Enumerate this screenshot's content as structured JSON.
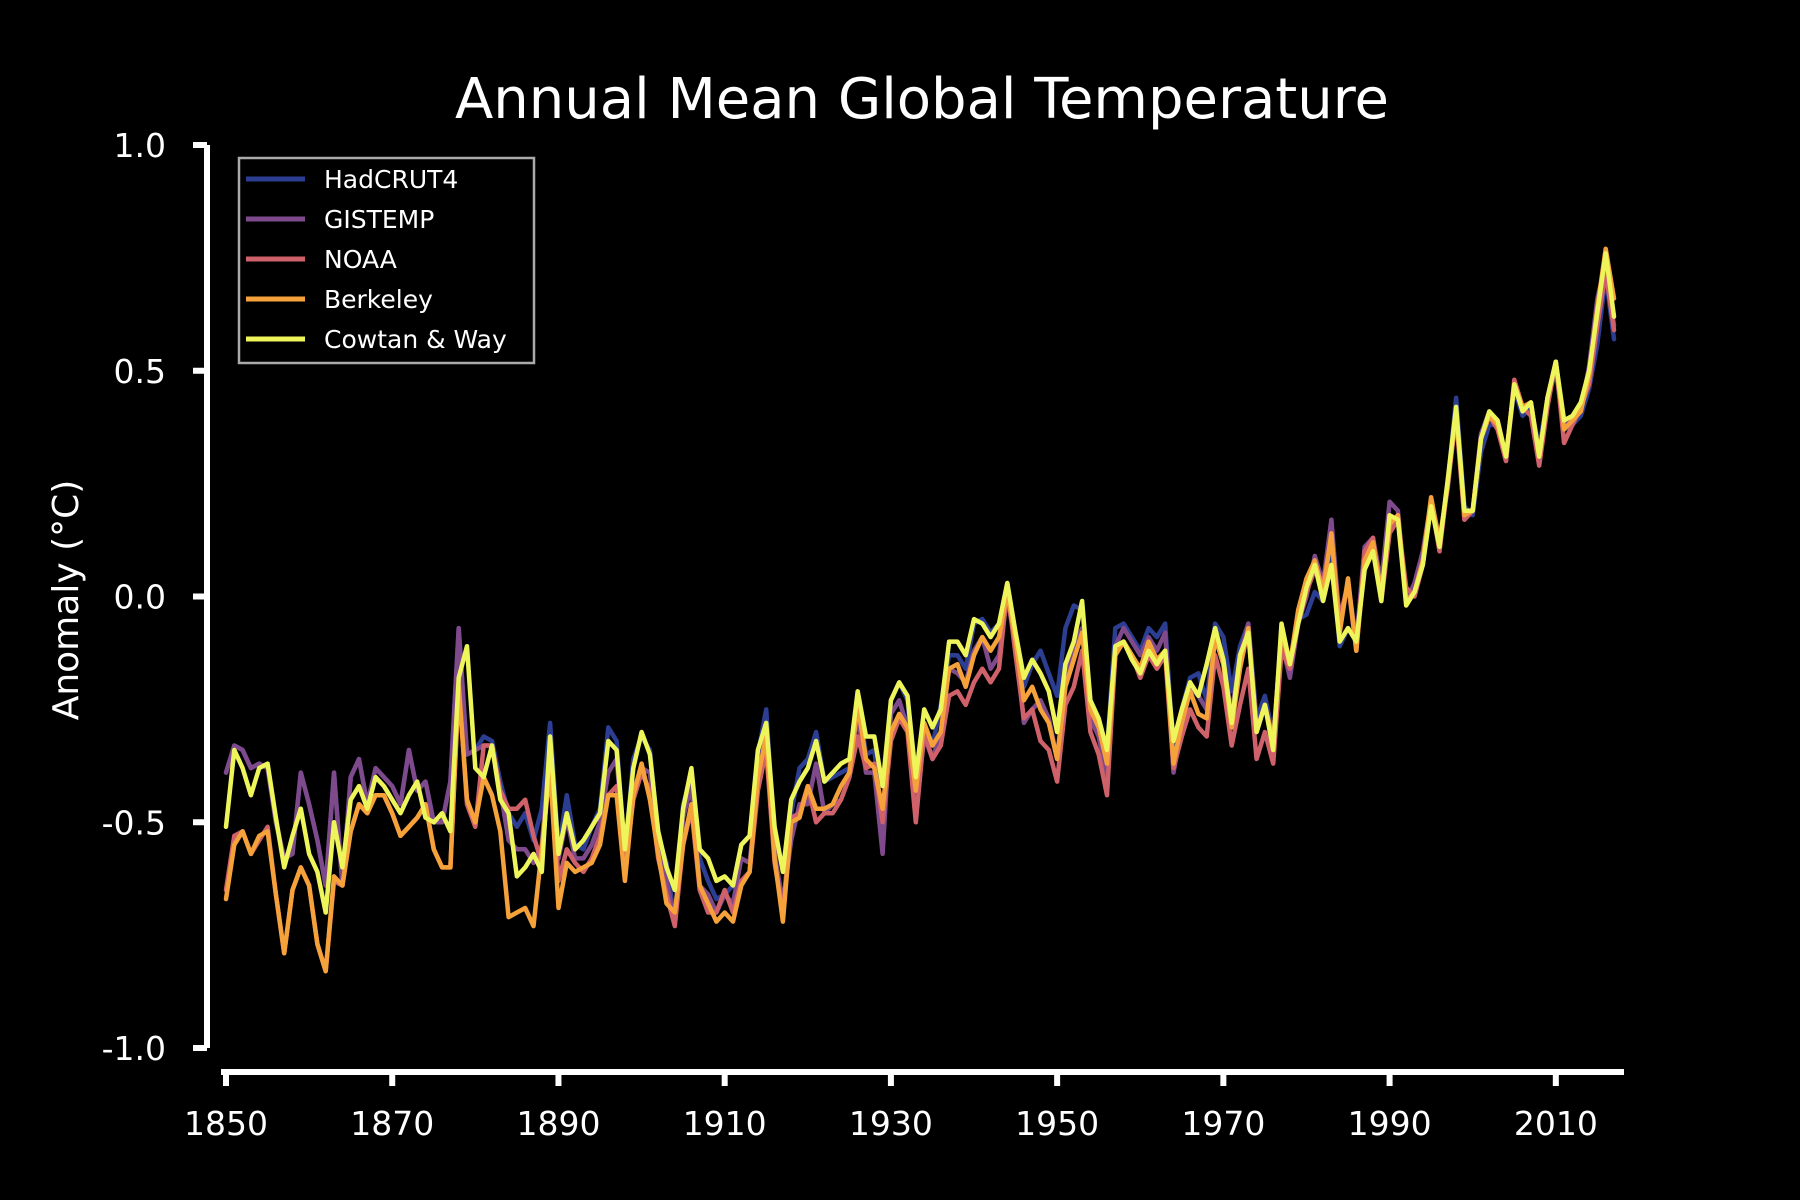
{
  "chart_data": {
    "type": "line",
    "title": "Annual Mean Global Temperature",
    "xlabel": "",
    "ylabel": "Anomaly (°C)",
    "xlim": [
      1850,
      2017
    ],
    "ylim": [
      -1.0,
      1.0
    ],
    "x_ticks": [
      1850,
      1870,
      1890,
      1910,
      1930,
      1950,
      1970,
      1990,
      2010
    ],
    "y_ticks": [
      {
        "value": 1.0,
        "label": "1.0"
      },
      {
        "value": 0.5,
        "label": "0.5"
      },
      {
        "value": 0.0,
        "label": "0.0"
      },
      {
        "value": -0.5,
        "label": "-0.5"
      },
      {
        "value": -1.0,
        "label": "-1.0"
      }
    ],
    "grid": false,
    "legend_position": "top-left",
    "x": [
      1850,
      1851,
      1852,
      1853,
      1854,
      1855,
      1856,
      1857,
      1858,
      1859,
      1860,
      1861,
      1862,
      1863,
      1864,
      1865,
      1866,
      1867,
      1868,
      1869,
      1870,
      1871,
      1872,
      1873,
      1874,
      1875,
      1876,
      1877,
      1878,
      1879,
      1880,
      1881,
      1882,
      1883,
      1884,
      1885,
      1886,
      1887,
      1888,
      1889,
      1890,
      1891,
      1892,
      1893,
      1894,
      1895,
      1896,
      1897,
      1898,
      1899,
      1900,
      1901,
      1902,
      1903,
      1904,
      1905,
      1906,
      1907,
      1908,
      1909,
      1910,
      1911,
      1912,
      1913,
      1914,
      1915,
      1916,
      1917,
      1918,
      1919,
      1920,
      1921,
      1922,
      1923,
      1924,
      1925,
      1926,
      1927,
      1928,
      1929,
      1930,
      1931,
      1932,
      1933,
      1934,
      1935,
      1936,
      1937,
      1938,
      1939,
      1940,
      1941,
      1942,
      1943,
      1944,
      1945,
      1946,
      1947,
      1948,
      1949,
      1950,
      1951,
      1952,
      1953,
      1954,
      1955,
      1956,
      1957,
      1958,
      1959,
      1960,
      1961,
      1962,
      1963,
      1964,
      1965,
      1966,
      1967,
      1968,
      1969,
      1970,
      1971,
      1972,
      1973,
      1974,
      1975,
      1976,
      1977,
      1978,
      1979,
      1980,
      1981,
      1982,
      1983,
      1984,
      1985,
      1986,
      1987,
      1988,
      1989,
      1990,
      1991,
      1992,
      1993,
      1994,
      1995,
      1996,
      1997,
      1998,
      1999,
      2000,
      2001,
      2002,
      2003,
      2004,
      2005,
      2006,
      2007,
      2008,
      2009,
      2010,
      2011,
      2012,
      2013,
      2014,
      2015,
      2016,
      2017
    ],
    "series": [
      {
        "name": "HadCRUT4",
        "color": "#2c3e91",
        "values": [
          -0.39,
          -0.33,
          -0.34,
          -0.38,
          -0.37,
          -0.38,
          -0.5,
          -0.58,
          -0.57,
          -0.39,
          -0.46,
          -0.54,
          -0.64,
          -0.39,
          -0.64,
          -0.4,
          -0.36,
          -0.46,
          -0.38,
          -0.4,
          -0.42,
          -0.46,
          -0.34,
          -0.43,
          -0.41,
          -0.5,
          -0.5,
          -0.41,
          -0.07,
          -0.35,
          -0.34,
          -0.31,
          -0.32,
          -0.41,
          -0.48,
          -0.51,
          -0.48,
          -0.54,
          -0.47,
          -0.28,
          -0.56,
          -0.44,
          -0.55,
          -0.56,
          -0.51,
          -0.47,
          -0.29,
          -0.32,
          -0.57,
          -0.36,
          -0.31,
          -0.34,
          -0.53,
          -0.59,
          -0.72,
          -0.46,
          -0.4,
          -0.58,
          -0.63,
          -0.67,
          -0.66,
          -0.64,
          -0.55,
          -0.53,
          -0.35,
          -0.25,
          -0.54,
          -0.6,
          -0.48,
          -0.38,
          -0.36,
          -0.3,
          -0.41,
          -0.4,
          -0.39,
          -0.38,
          -0.22,
          -0.35,
          -0.34,
          -0.5,
          -0.23,
          -0.19,
          -0.23,
          -0.44,
          -0.29,
          -0.33,
          -0.24,
          -0.13,
          -0.13,
          -0.16,
          -0.06,
          -0.05,
          -0.08,
          -0.06,
          0.03,
          -0.09,
          -0.2,
          -0.15,
          -0.12,
          -0.17,
          -0.22,
          -0.07,
          -0.02,
          -0.03,
          -0.23,
          -0.27,
          -0.34,
          -0.07,
          -0.06,
          -0.09,
          -0.12,
          -0.07,
          -0.09,
          -0.06,
          -0.35,
          -0.25,
          -0.18,
          -0.17,
          -0.23,
          -0.06,
          -0.09,
          -0.21,
          -0.11,
          -0.06,
          -0.27,
          -0.22,
          -0.31,
          -0.1,
          -0.17,
          -0.05,
          -0.04,
          0.01,
          -0.01,
          0.09,
          -0.11,
          -0.07,
          -0.1,
          0.11,
          0.12,
          -0.0,
          0.15,
          0.18,
          -0.01,
          0.02,
          0.09,
          0.21,
          0.11,
          0.25,
          0.44,
          0.2,
          0.18,
          0.32,
          0.38,
          0.38,
          0.31,
          0.46,
          0.4,
          0.42,
          0.33,
          0.44,
          0.5,
          0.37,
          0.38,
          0.4,
          0.46,
          0.56,
          0.71,
          0.57
        ]
      },
      {
        "name": "GISTEMP",
        "color": "#7e4a8c",
        "values": [
          -0.39,
          -0.33,
          -0.34,
          -0.38,
          -0.37,
          -0.38,
          -0.5,
          -0.58,
          -0.57,
          -0.39,
          -0.46,
          -0.54,
          -0.64,
          -0.39,
          -0.64,
          -0.4,
          -0.36,
          -0.46,
          -0.38,
          -0.4,
          -0.42,
          -0.46,
          -0.34,
          -0.43,
          -0.41,
          -0.5,
          -0.5,
          -0.41,
          -0.07,
          -0.35,
          -0.34,
          -0.33,
          -0.33,
          -0.43,
          -0.54,
          -0.56,
          -0.56,
          -0.59,
          -0.55,
          -0.33,
          -0.58,
          -0.49,
          -0.58,
          -0.58,
          -0.55,
          -0.5,
          -0.39,
          -0.36,
          -0.57,
          -0.43,
          -0.38,
          -0.39,
          -0.54,
          -0.63,
          -0.72,
          -0.49,
          -0.42,
          -0.64,
          -0.66,
          -0.7,
          -0.66,
          -0.68,
          -0.58,
          -0.59,
          -0.42,
          -0.29,
          -0.57,
          -0.68,
          -0.54,
          -0.46,
          -0.46,
          -0.37,
          -0.48,
          -0.46,
          -0.45,
          -0.4,
          -0.26,
          -0.39,
          -0.39,
          -0.57,
          -0.26,
          -0.23,
          -0.29,
          -0.48,
          -0.31,
          -0.36,
          -0.3,
          -0.16,
          -0.17,
          -0.19,
          -0.12,
          -0.09,
          -0.16,
          -0.13,
          0.0,
          -0.11,
          -0.28,
          -0.25,
          -0.23,
          -0.27,
          -0.36,
          -0.18,
          -0.11,
          -0.07,
          -0.27,
          -0.31,
          -0.4,
          -0.11,
          -0.07,
          -0.1,
          -0.13,
          -0.09,
          -0.12,
          -0.08,
          -0.39,
          -0.29,
          -0.2,
          -0.22,
          -0.25,
          -0.09,
          -0.15,
          -0.26,
          -0.13,
          -0.06,
          -0.29,
          -0.24,
          -0.32,
          -0.1,
          -0.18,
          -0.06,
          0.0,
          0.09,
          0.03,
          0.17,
          -0.06,
          0.03,
          -0.1,
          0.11,
          0.13,
          0.03,
          0.21,
          0.19,
          -0.01,
          0.03,
          0.1,
          0.21,
          0.13,
          0.24,
          0.41,
          0.17,
          0.19,
          0.36,
          0.41,
          0.38,
          0.3,
          0.47,
          0.41,
          0.43,
          0.31,
          0.44,
          0.52,
          0.38,
          0.39,
          0.41,
          0.51,
          0.66,
          0.74,
          0.6
        ]
      },
      {
        "name": "NOAA",
        "color": "#cf616a",
        "values": [
          -0.65,
          -0.53,
          -0.52,
          -0.57,
          -0.54,
          -0.51,
          -0.66,
          -0.79,
          -0.65,
          -0.6,
          -0.64,
          -0.77,
          -0.83,
          -0.63,
          -0.64,
          -0.52,
          -0.46,
          -0.48,
          -0.44,
          -0.44,
          -0.48,
          -0.53,
          -0.51,
          -0.49,
          -0.46,
          -0.56,
          -0.6,
          -0.6,
          -0.19,
          -0.46,
          -0.51,
          -0.33,
          -0.33,
          -0.43,
          -0.47,
          -0.47,
          -0.45,
          -0.53,
          -0.59,
          -0.34,
          -0.63,
          -0.56,
          -0.59,
          -0.61,
          -0.58,
          -0.53,
          -0.44,
          -0.42,
          -0.6,
          -0.45,
          -0.39,
          -0.43,
          -0.58,
          -0.66,
          -0.73,
          -0.55,
          -0.47,
          -0.65,
          -0.7,
          -0.7,
          -0.65,
          -0.7,
          -0.63,
          -0.61,
          -0.43,
          -0.34,
          -0.59,
          -0.7,
          -0.49,
          -0.48,
          -0.42,
          -0.5,
          -0.48,
          -0.48,
          -0.45,
          -0.4,
          -0.31,
          -0.38,
          -0.37,
          -0.5,
          -0.32,
          -0.27,
          -0.3,
          -0.5,
          -0.3,
          -0.36,
          -0.33,
          -0.22,
          -0.21,
          -0.24,
          -0.19,
          -0.16,
          -0.19,
          -0.16,
          0.02,
          -0.13,
          -0.27,
          -0.25,
          -0.32,
          -0.34,
          -0.41,
          -0.24,
          -0.2,
          -0.12,
          -0.3,
          -0.35,
          -0.44,
          -0.13,
          -0.1,
          -0.13,
          -0.18,
          -0.13,
          -0.16,
          -0.13,
          -0.38,
          -0.31,
          -0.25,
          -0.29,
          -0.31,
          -0.13,
          -0.2,
          -0.33,
          -0.24,
          -0.16,
          -0.36,
          -0.3,
          -0.37,
          -0.12,
          -0.16,
          -0.06,
          0.01,
          0.06,
          0.03,
          0.13,
          -0.05,
          0.03,
          -0.12,
          0.1,
          0.13,
          -0.01,
          0.14,
          0.17,
          0.02,
          0.0,
          0.07,
          0.21,
          0.1,
          0.25,
          0.4,
          0.17,
          0.19,
          0.35,
          0.4,
          0.37,
          0.3,
          0.48,
          0.42,
          0.4,
          0.29,
          0.42,
          0.52,
          0.34,
          0.38,
          0.42,
          0.47,
          0.6,
          0.72,
          0.59
        ]
      },
      {
        "name": "Berkeley",
        "color": "#f6a23a",
        "values": [
          -0.67,
          -0.55,
          -0.52,
          -0.57,
          -0.53,
          -0.52,
          -0.66,
          -0.79,
          -0.65,
          -0.6,
          -0.64,
          -0.77,
          -0.83,
          -0.62,
          -0.64,
          -0.52,
          -0.46,
          -0.48,
          -0.44,
          -0.44,
          -0.48,
          -0.53,
          -0.51,
          -0.49,
          -0.46,
          -0.56,
          -0.6,
          -0.6,
          -0.2,
          -0.45,
          -0.5,
          -0.4,
          -0.44,
          -0.52,
          -0.71,
          -0.7,
          -0.69,
          -0.73,
          -0.56,
          -0.38,
          -0.69,
          -0.59,
          -0.61,
          -0.6,
          -0.59,
          -0.55,
          -0.44,
          -0.44,
          -0.63,
          -0.44,
          -0.37,
          -0.45,
          -0.57,
          -0.68,
          -0.7,
          -0.55,
          -0.46,
          -0.64,
          -0.68,
          -0.72,
          -0.7,
          -0.72,
          -0.64,
          -0.61,
          -0.4,
          -0.31,
          -0.58,
          -0.72,
          -0.5,
          -0.49,
          -0.42,
          -0.47,
          -0.47,
          -0.46,
          -0.42,
          -0.39,
          -0.24,
          -0.36,
          -0.38,
          -0.47,
          -0.3,
          -0.26,
          -0.29,
          -0.43,
          -0.28,
          -0.33,
          -0.3,
          -0.16,
          -0.15,
          -0.2,
          -0.13,
          -0.09,
          -0.12,
          -0.09,
          0.01,
          -0.1,
          -0.23,
          -0.2,
          -0.25,
          -0.28,
          -0.36,
          -0.2,
          -0.14,
          -0.08,
          -0.25,
          -0.29,
          -0.37,
          -0.13,
          -0.1,
          -0.13,
          -0.16,
          -0.1,
          -0.14,
          -0.12,
          -0.37,
          -0.28,
          -0.21,
          -0.26,
          -0.27,
          -0.09,
          -0.15,
          -0.29,
          -0.16,
          -0.07,
          -0.3,
          -0.24,
          -0.32,
          -0.08,
          -0.15,
          -0.03,
          0.04,
          0.08,
          0.01,
          0.14,
          -0.08,
          0.04,
          -0.12,
          0.08,
          0.12,
          0.01,
          0.16,
          0.18,
          -0.01,
          0.01,
          0.08,
          0.22,
          0.12,
          0.25,
          0.41,
          0.18,
          0.19,
          0.35,
          0.4,
          0.38,
          0.31,
          0.47,
          0.42,
          0.43,
          0.31,
          0.44,
          0.52,
          0.37,
          0.39,
          0.41,
          0.49,
          0.64,
          0.77,
          0.66
        ]
      },
      {
        "name": "Cowtan & Way",
        "color": "#eef55a",
        "values": [
          -0.51,
          -0.34,
          -0.38,
          -0.44,
          -0.38,
          -0.37,
          -0.49,
          -0.6,
          -0.53,
          -0.47,
          -0.57,
          -0.61,
          -0.7,
          -0.5,
          -0.6,
          -0.45,
          -0.42,
          -0.47,
          -0.4,
          -0.42,
          -0.45,
          -0.48,
          -0.44,
          -0.41,
          -0.49,
          -0.5,
          -0.48,
          -0.52,
          -0.18,
          -0.11,
          -0.38,
          -0.4,
          -0.33,
          -0.45,
          -0.48,
          -0.62,
          -0.6,
          -0.57,
          -0.61,
          -0.31,
          -0.57,
          -0.48,
          -0.56,
          -0.54,
          -0.51,
          -0.48,
          -0.32,
          -0.34,
          -0.56,
          -0.38,
          -0.3,
          -0.35,
          -0.52,
          -0.6,
          -0.65,
          -0.47,
          -0.38,
          -0.56,
          -0.58,
          -0.63,
          -0.62,
          -0.64,
          -0.55,
          -0.53,
          -0.34,
          -0.28,
          -0.51,
          -0.61,
          -0.45,
          -0.41,
          -0.38,
          -0.32,
          -0.41,
          -0.39,
          -0.37,
          -0.36,
          -0.21,
          -0.31,
          -0.31,
          -0.42,
          -0.23,
          -0.19,
          -0.22,
          -0.4,
          -0.25,
          -0.29,
          -0.25,
          -0.1,
          -0.1,
          -0.13,
          -0.05,
          -0.06,
          -0.09,
          -0.06,
          0.03,
          -0.08,
          -0.18,
          -0.14,
          -0.17,
          -0.21,
          -0.3,
          -0.15,
          -0.1,
          -0.01,
          -0.23,
          -0.27,
          -0.34,
          -0.11,
          -0.1,
          -0.14,
          -0.17,
          -0.12,
          -0.15,
          -0.12,
          -0.32,
          -0.25,
          -0.19,
          -0.22,
          -0.15,
          -0.07,
          -0.14,
          -0.28,
          -0.13,
          -0.08,
          -0.3,
          -0.24,
          -0.34,
          -0.06,
          -0.15,
          -0.06,
          0.02,
          0.07,
          -0.01,
          0.07,
          -0.1,
          -0.07,
          -0.1,
          0.06,
          0.1,
          -0.01,
          0.18,
          0.17,
          -0.02,
          0.01,
          0.07,
          0.2,
          0.11,
          0.26,
          0.42,
          0.19,
          0.19,
          0.35,
          0.41,
          0.39,
          0.31,
          0.47,
          0.41,
          0.43,
          0.31,
          0.44,
          0.52,
          0.39,
          0.4,
          0.43,
          0.5,
          0.63,
          0.76,
          0.62
        ]
      }
    ]
  }
}
